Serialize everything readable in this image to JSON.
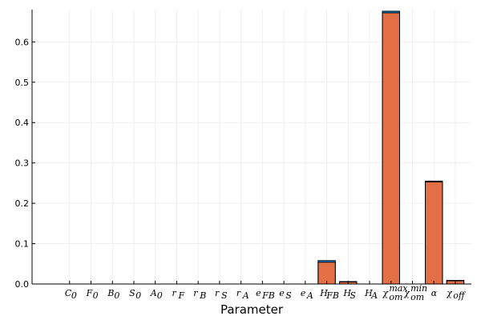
{
  "chart_data": {
    "type": "bar",
    "title": "",
    "xlabel": "Parameter",
    "ylabel": "",
    "ylim": [
      0,
      0.68
    ],
    "yticks": [
      0.0,
      0.1,
      0.2,
      0.3,
      0.4,
      0.5,
      0.6
    ],
    "ytick_labels": [
      "0.0",
      "0.1",
      "0.2",
      "0.3",
      "0.4",
      "0.5",
      "0.6"
    ],
    "grid": true,
    "legend": "none",
    "categories": [
      {
        "main": "C",
        "sub": "0"
      },
      {
        "main": "F",
        "sub": "0"
      },
      {
        "main": "B",
        "sub": "0"
      },
      {
        "main": "S",
        "sub": "0"
      },
      {
        "main": "A",
        "sub": "0"
      },
      {
        "main": "r",
        "sub": "F"
      },
      {
        "main": "r",
        "sub": "B"
      },
      {
        "main": "r",
        "sub": "S"
      },
      {
        "main": "r",
        "sub": "A"
      },
      {
        "main": "e",
        "sub": "FB"
      },
      {
        "main": "e",
        "sub": "S"
      },
      {
        "main": "e",
        "sub": "A"
      },
      {
        "main": "H",
        "sub": "FB"
      },
      {
        "main": "H",
        "sub": "S"
      },
      {
        "main": "H",
        "sub": "A"
      },
      {
        "main": "χ",
        "sub": "om",
        "sup": "max"
      },
      {
        "main": "χ",
        "sub": "om",
        "sup": "min"
      },
      {
        "main": "α",
        "sub": ""
      },
      {
        "main": "χ",
        "sub": "off"
      }
    ],
    "series": [
      {
        "color": "#009AFA",
        "values": [
          0,
          0,
          0,
          0,
          0,
          0,
          0,
          0,
          0,
          0,
          0,
          0,
          0.058,
          0.006,
          0,
          0.676,
          0,
          0.255,
          0.009
        ]
      },
      {
        "color": "#E26F46",
        "values": [
          0,
          0,
          0,
          0,
          0,
          0,
          0,
          0,
          0,
          0,
          0,
          0,
          0.054,
          0.005,
          0,
          0.672,
          0,
          0.253,
          0.008
        ]
      }
    ]
  }
}
